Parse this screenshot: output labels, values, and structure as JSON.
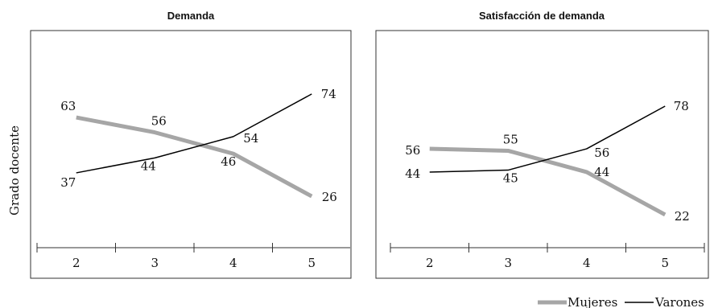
{
  "ylabel": "Grado docente",
  "legend": [
    {
      "name": "Mujeres",
      "color": "#a6a6a6"
    },
    {
      "name": "Varones",
      "color": "#000000"
    }
  ],
  "chart_data": [
    {
      "type": "line",
      "title": "Demanda",
      "categories": [
        "2",
        "3",
        "4",
        "5"
      ],
      "ylabel": "Grado docente",
      "legend_position": "bottom-right",
      "grid": false,
      "series": [
        {
          "name": "Mujeres",
          "color": "#a6a6a6",
          "values": [
            63,
            56,
            46,
            26
          ],
          "labels": [
            "63",
            "56",
            "46",
            "26"
          ]
        },
        {
          "name": "Varones",
          "color": "#000000",
          "values": [
            37,
            44,
            54,
            74
          ],
          "labels": [
            "37",
            "44",
            "54",
            "74"
          ]
        }
      ]
    },
    {
      "type": "line",
      "title": "Satisfacción de demanda",
      "categories": [
        "2",
        "3",
        "4",
        "5"
      ],
      "legend_position": "bottom-right",
      "grid": false,
      "series": [
        {
          "name": "Mujeres",
          "color": "#a6a6a6",
          "values": [
            56,
            55,
            44,
            22
          ],
          "labels": [
            "56",
            "55",
            "44",
            "22"
          ]
        },
        {
          "name": "Varones",
          "color": "#000000",
          "values": [
            44,
            45,
            56,
            78
          ],
          "labels": [
            "44",
            "45",
            "56",
            "78"
          ]
        }
      ]
    }
  ]
}
